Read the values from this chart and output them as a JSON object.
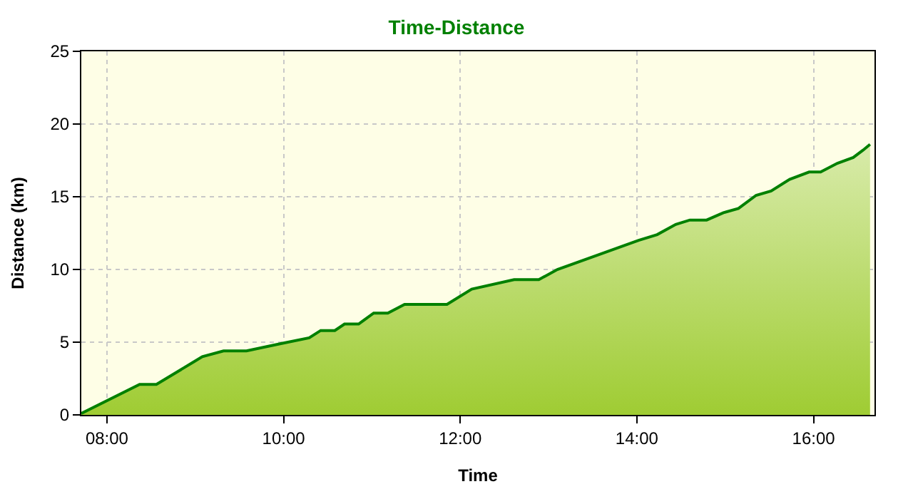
{
  "chart_data": {
    "type": "area",
    "title": "Time-Distance",
    "xlabel": "Time",
    "ylabel": "Distance (km)",
    "x": [
      7.71,
      8.37,
      8.56,
      9.08,
      9.32,
      9.58,
      9.97,
      10.29,
      10.42,
      10.58,
      10.69,
      10.85,
      11.02,
      11.18,
      11.37,
      11.85,
      12.13,
      12.61,
      12.89,
      13.1,
      13.56,
      14.02,
      14.23,
      14.44,
      14.6,
      14.79,
      14.98,
      15.15,
      15.35,
      15.52,
      15.73,
      15.95,
      16.08,
      16.27,
      16.45,
      16.56,
      16.64
    ],
    "series": [
      {
        "color": "#008000",
        "values": [
          0.1,
          2.1,
          2.1,
          4.0,
          4.4,
          4.4,
          4.9,
          5.3,
          5.8,
          5.8,
          6.25,
          6.25,
          7.0,
          7.0,
          7.6,
          7.6,
          8.65,
          9.3,
          9.3,
          10.0,
          11.0,
          12.0,
          12.4,
          13.1,
          13.4,
          13.4,
          13.9,
          14.2,
          15.1,
          15.4,
          16.2,
          16.7,
          16.7,
          17.3,
          17.7,
          18.2,
          18.6
        ]
      }
    ],
    "xlim": [
      7.71,
      16.69
    ],
    "xticks": [
      {
        "value": 8,
        "label": "08:00"
      },
      {
        "value": 10,
        "label": "10:00"
      },
      {
        "value": 12,
        "label": "12:00"
      },
      {
        "value": 14,
        "label": "14:00"
      },
      {
        "value": 16,
        "label": "16:00"
      }
    ],
    "ylim": [
      0,
      25
    ],
    "yticks": [
      0,
      5,
      10,
      15,
      20,
      25
    ],
    "grid": true,
    "legend": false
  }
}
